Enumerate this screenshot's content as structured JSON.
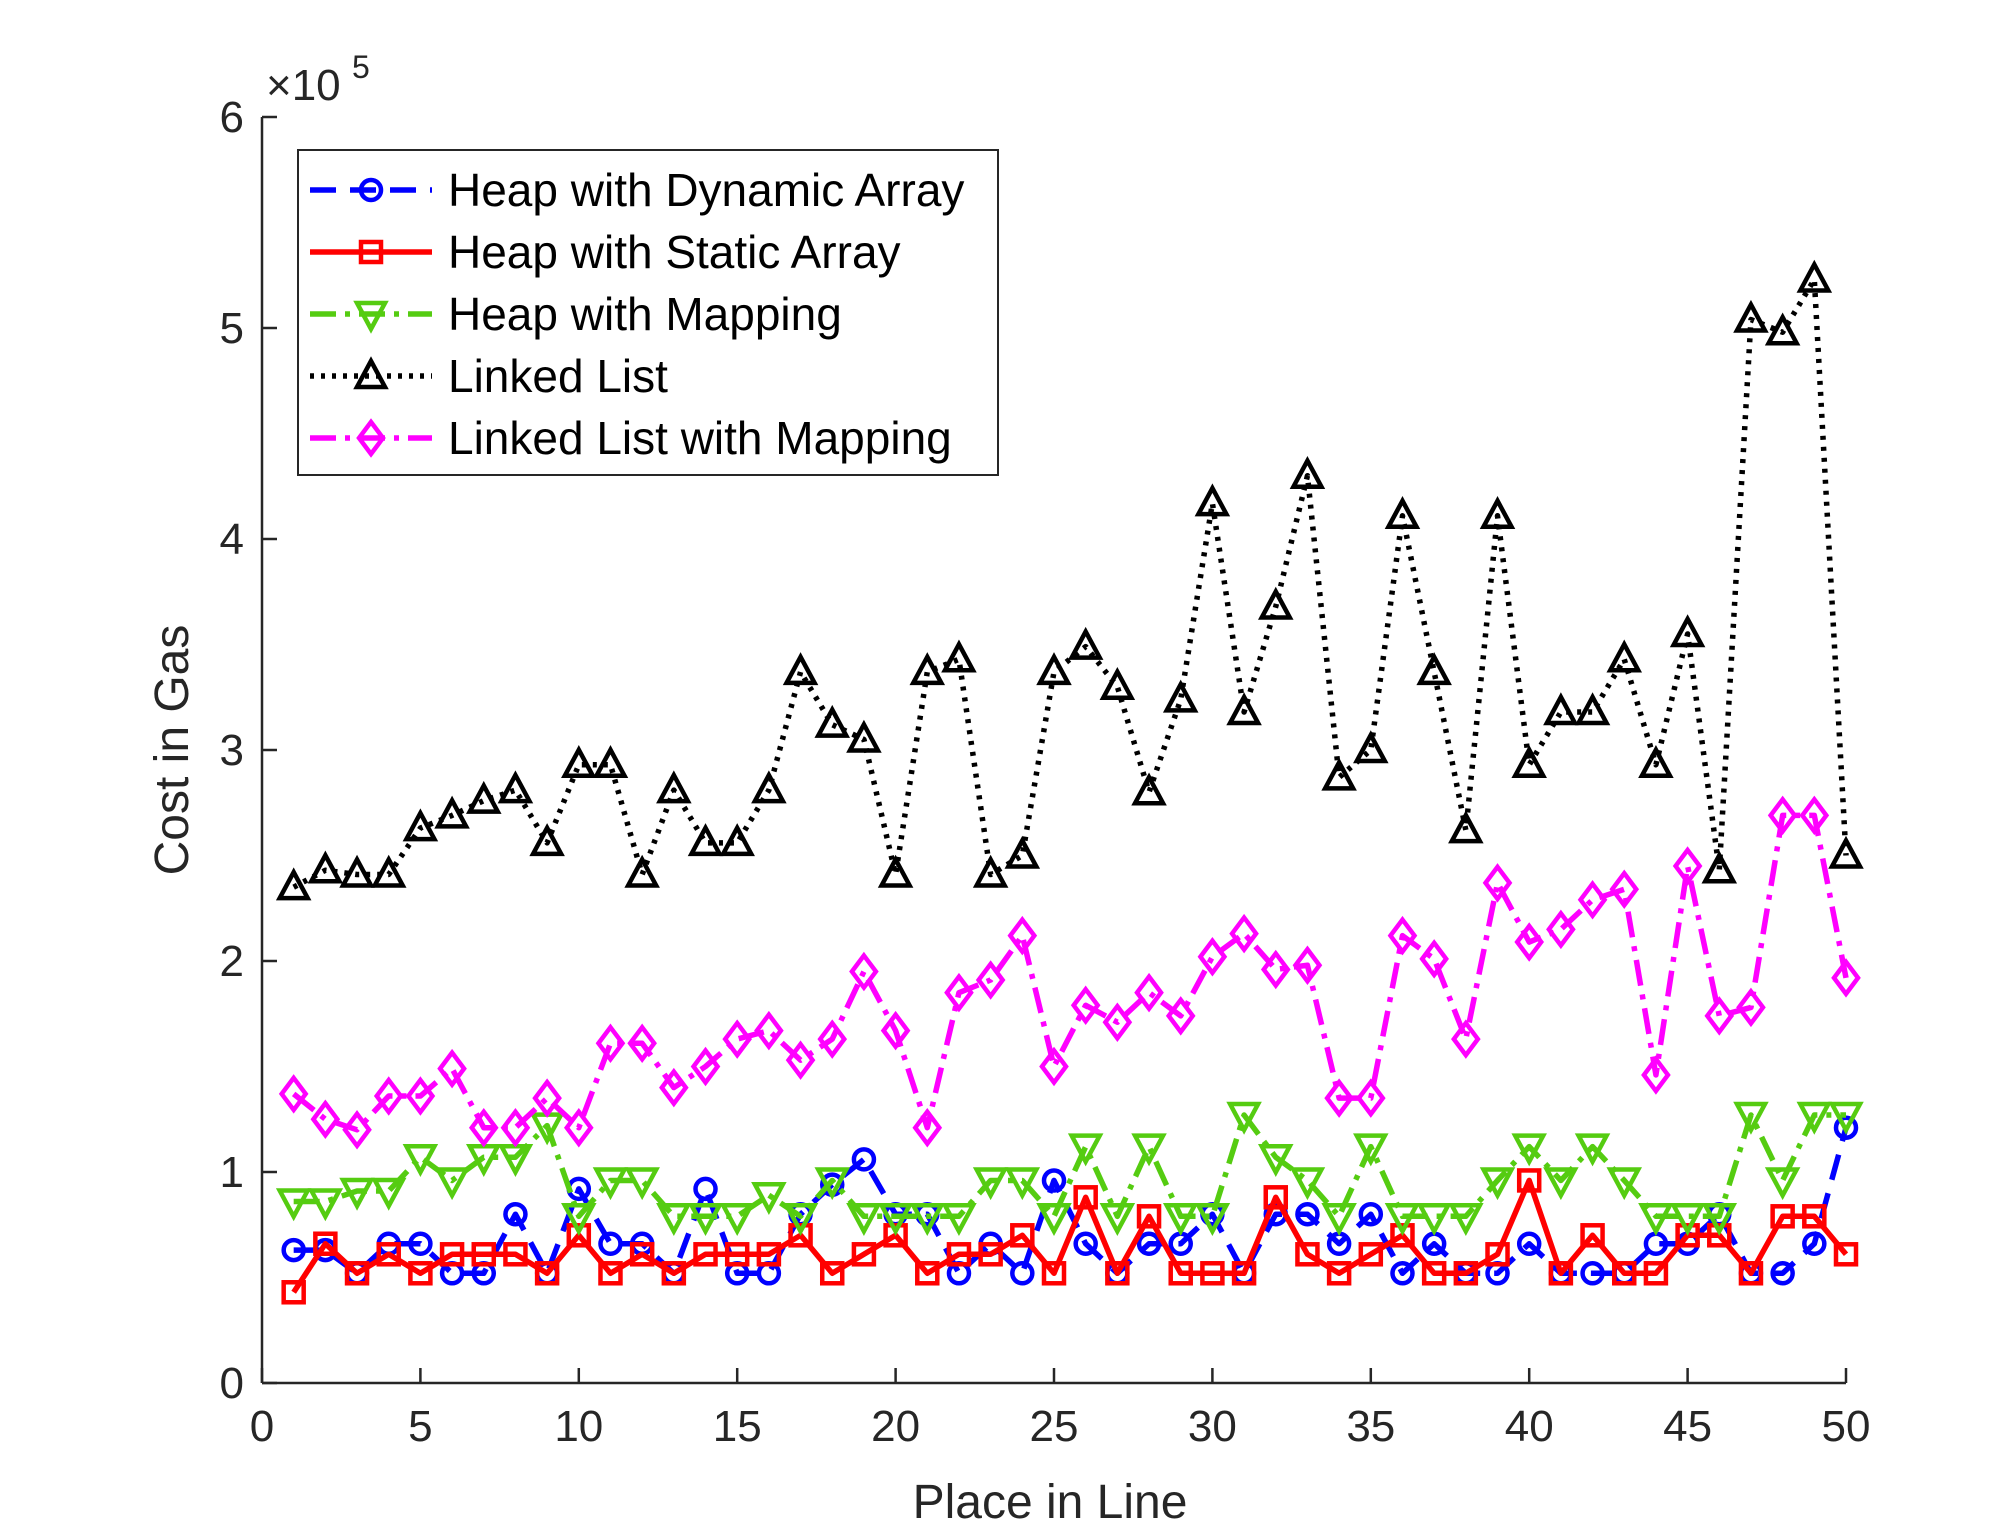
{
  "chart_data": {
    "type": "line",
    "title": "",
    "xlabel": "Place in Line",
    "ylabel": "Cost in Gas",
    "y_exponent_label": "×10",
    "y_exponent_power": "5",
    "xlim": [
      0,
      50
    ],
    "ylim": [
      0,
      6
    ],
    "xticks": [
      0,
      5,
      10,
      15,
      20,
      25,
      30,
      35,
      40,
      45,
      50
    ],
    "yticks": [
      0,
      1,
      2,
      3,
      4,
      5,
      6
    ],
    "grid": false,
    "legend_placement": "top-left",
    "x": [
      1,
      2,
      3,
      4,
      5,
      6,
      7,
      8,
      9,
      10,
      11,
      12,
      13,
      14,
      15,
      16,
      17,
      18,
      19,
      20,
      21,
      22,
      23,
      24,
      25,
      26,
      27,
      28,
      29,
      30,
      31,
      32,
      33,
      34,
      35,
      36,
      37,
      38,
      39,
      40,
      41,
      42,
      43,
      44,
      45,
      46,
      47,
      48,
      49,
      50
    ],
    "series": [
      {
        "name": "Heap with Dynamic Array",
        "color": "#0000ff",
        "line_style": "dashed",
        "marker": "circle",
        "values": [
          0.63,
          0.63,
          0.52,
          0.66,
          0.66,
          0.52,
          0.52,
          0.8,
          0.52,
          0.92,
          0.66,
          0.66,
          0.52,
          0.92,
          0.52,
          0.52,
          0.8,
          0.94,
          1.06,
          0.8,
          0.8,
          0.52,
          0.66,
          0.52,
          0.96,
          0.66,
          0.52,
          0.66,
          0.66,
          0.8,
          0.52,
          0.8,
          0.8,
          0.66,
          0.8,
          0.52,
          0.66,
          0.52,
          0.52,
          0.66,
          0.52,
          0.52,
          0.52,
          0.66,
          0.66,
          0.8,
          0.52,
          0.52,
          0.66,
          1.21
        ]
      },
      {
        "name": "Heap with Static Array",
        "color": "#ff0000",
        "line_style": "solid",
        "marker": "square",
        "values": [
          0.43,
          0.66,
          0.52,
          0.61,
          0.52,
          0.61,
          0.61,
          0.61,
          0.52,
          0.7,
          0.52,
          0.61,
          0.52,
          0.61,
          0.61,
          0.61,
          0.7,
          0.52,
          0.61,
          0.7,
          0.52,
          0.61,
          0.61,
          0.7,
          0.52,
          0.88,
          0.52,
          0.79,
          0.52,
          0.52,
          0.52,
          0.88,
          0.61,
          0.52,
          0.61,
          0.7,
          0.52,
          0.52,
          0.61,
          0.96,
          0.52,
          0.7,
          0.52,
          0.52,
          0.7,
          0.7,
          0.52,
          0.79,
          0.79,
          0.61
        ]
      },
      {
        "name": "Heap with Mapping",
        "color": "#55cc11",
        "line_style": "dashdot",
        "marker": "triangle-down",
        "values": [
          0.86,
          0.86,
          0.91,
          0.91,
          1.07,
          0.96,
          1.07,
          1.07,
          1.22,
          0.79,
          0.96,
          0.96,
          0.79,
          0.79,
          0.79,
          0.89,
          0.79,
          0.96,
          0.79,
          0.79,
          0.79,
          0.79,
          0.96,
          0.96,
          0.79,
          1.12,
          0.79,
          1.12,
          0.79,
          0.79,
          1.27,
          1.07,
          0.96,
          0.79,
          1.12,
          0.79,
          0.79,
          0.79,
          0.96,
          1.12,
          0.96,
          1.12,
          0.96,
          0.79,
          0.79,
          0.79,
          1.27,
          0.96,
          1.27,
          1.27
        ]
      },
      {
        "name": "Linked List",
        "color": "#000000",
        "line_style": "dotted",
        "marker": "triangle-up",
        "values": [
          2.35,
          2.43,
          2.41,
          2.41,
          2.63,
          2.69,
          2.76,
          2.81,
          2.56,
          2.93,
          2.93,
          2.41,
          2.81,
          2.56,
          2.56,
          2.81,
          3.37,
          3.12,
          3.05,
          2.41,
          3.37,
          3.43,
          2.41,
          2.5,
          3.37,
          3.49,
          3.3,
          2.8,
          3.24,
          4.17,
          3.18,
          3.68,
          4.3,
          2.87,
          3.0,
          4.11,
          3.37,
          2.62,
          4.11,
          2.93,
          3.18,
          3.18,
          3.43,
          2.93,
          3.55,
          2.43,
          5.04,
          4.98,
          5.23,
          2.5
        ]
      },
      {
        "name": "Linked List with Mapping",
        "color": "#ff00ff",
        "line_style": "dashdot",
        "marker": "diamond",
        "values": [
          1.37,
          1.25,
          1.2,
          1.36,
          1.36,
          1.49,
          1.21,
          1.21,
          1.35,
          1.21,
          1.61,
          1.61,
          1.4,
          1.5,
          1.63,
          1.67,
          1.53,
          1.63,
          1.95,
          1.67,
          1.21,
          1.85,
          1.91,
          2.12,
          1.5,
          1.79,
          1.71,
          1.85,
          1.74,
          2.02,
          2.13,
          1.96,
          1.98,
          1.35,
          1.35,
          2.12,
          2.01,
          1.63,
          2.37,
          2.09,
          2.15,
          2.29,
          2.34,
          1.46,
          2.45,
          1.74,
          1.78,
          2.69,
          2.69,
          1.92
        ]
      }
    ]
  }
}
